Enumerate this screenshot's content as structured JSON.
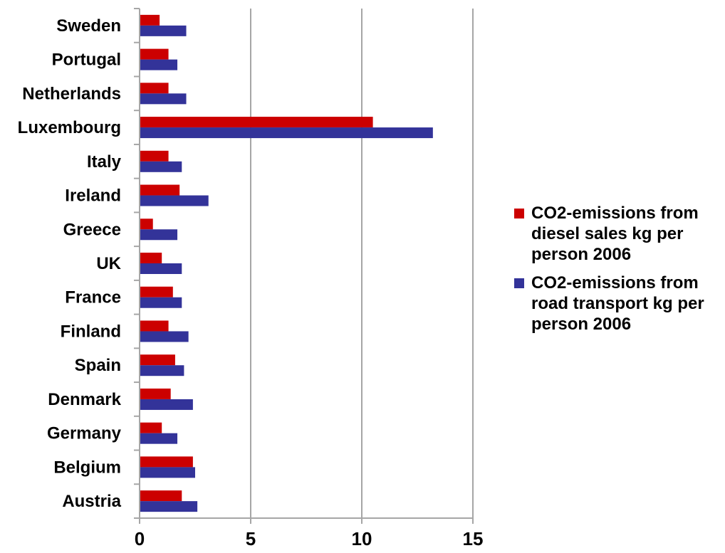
{
  "chart_data": {
    "type": "bar",
    "orientation": "horizontal",
    "categories": [
      "Sweden",
      "Portugal",
      "Netherlands",
      "Luxembourg",
      "Italy",
      "Ireland",
      "Greece",
      "UK",
      "France",
      "Finland",
      "Spain",
      "Denmark",
      "Germany",
      "Belgium",
      "Austria"
    ],
    "series": [
      {
        "name": "CO2-emissions from diesel sales kg per person 2006",
        "color": "#cc0000",
        "values": [
          0.9,
          1.3,
          1.3,
          10.5,
          1.3,
          1.8,
          0.6,
          1.0,
          1.5,
          1.3,
          1.6,
          1.4,
          1.0,
          2.4,
          1.9
        ]
      },
      {
        "name": "CO2-emissions from road transport kg per person 2006",
        "color": "#333399",
        "values": [
          2.1,
          1.7,
          2.1,
          13.2,
          1.9,
          3.1,
          1.7,
          1.9,
          1.9,
          2.2,
          2.0,
          2.4,
          1.7,
          2.5,
          2.6
        ]
      }
    ],
    "xlim": [
      0,
      15
    ],
    "xticks": [
      0,
      5,
      10,
      15
    ],
    "xgrid": true,
    "title": "",
    "xlabel": "",
    "ylabel": "",
    "legend_position": "right"
  }
}
